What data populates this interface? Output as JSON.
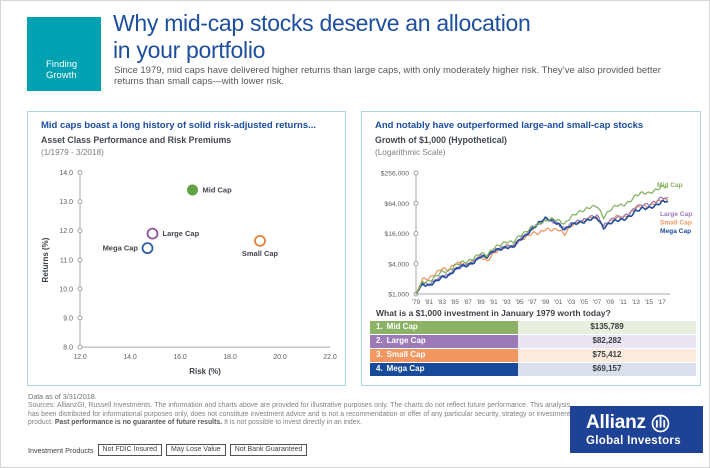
{
  "header": {
    "eyebrow_line1": "Finding",
    "eyebrow_line2": "Growth",
    "eyebrow_bg": "#00A1B0",
    "title_line1": "Why mid-cap stocks deserve an allocation",
    "title_line2": "in your portfolio",
    "title_color": "#1D4FA0",
    "subtitle": "Since 1979, mid caps have delivered higher returns than large caps, with only moderately higher risk. They’ve also provided better returns than small caps—with lower risk."
  },
  "left_panel": {
    "heading": "Mid caps boast a long history of solid risk-adjusted returns...",
    "subheading": "Asset Class Performance and Risk Premiums",
    "period": "(1/1979 - 3/2018)"
  },
  "right_panel": {
    "heading": "And notably have outperformed large-and small-cap stocks",
    "subheading": "Growth of $1,000 (Hypothetical)",
    "scale_note": "(Logarithmic Scale)"
  },
  "table": {
    "question": "What is a $1,000 investment in January 1979 worth today?",
    "rows": [
      {
        "rank": "1.",
        "label": "Mid Cap",
        "value": "$135,789",
        "row_color": "#8CB266",
        "value_bg": "#E9EFDE"
      },
      {
        "rank": "2.",
        "label": "Large Cap",
        "value": "$82,282",
        "row_color": "#9C7AB7",
        "value_bg": "#EAE5F2"
      },
      {
        "rank": "3.",
        "label": "Small Cap",
        "value": "$75,412",
        "row_color": "#F2975F",
        "value_bg": "#FCEADC"
      },
      {
        "rank": "4.",
        "label": "Mega Cap",
        "value": "$69,157",
        "row_color": "#174A9B",
        "value_bg": "#DBDFEC"
      }
    ]
  },
  "footer": {
    "data_as_of": "Data as of 3/31/2018.",
    "sources_pre": "Sources: AllianzGI, Russell Investments. The information and charts above are provided for illustrative purposes only. The charts do not reflect future performance. This analysis has been distributed for informational purposes only, does not constitute investment advice and is not a recommendation or offer of any particular security, strategy or investment product. ",
    "sources_bold": "Past performance is no guarantee of future results.",
    "sources_post": " It is not possible to invest directly in an index.",
    "disclaimer_label": "Investment Products",
    "disclaimer_boxes": [
      "Not FDIC Insured",
      "May Lose Value",
      "Not Bank Guaranteed"
    ],
    "logo_brand": "Allianz",
    "logo_sub": "Global Investors",
    "logo_bg": "#1E4296"
  },
  "chart_data": [
    {
      "type": "scatter",
      "title": "Asset Class Performance and Risk Premiums",
      "subtitle": "(1/1979 - 3/2018)",
      "xlabel": "Risk (%)",
      "ylabel": "Returns (%)",
      "xlim": [
        12.0,
        22.0
      ],
      "ylim": [
        8.0,
        14.0
      ],
      "xticks": [
        12.0,
        14.0,
        16.0,
        18.0,
        20.0,
        22.0
      ],
      "yticks": [
        8.0,
        9.0,
        10.0,
        11.0,
        12.0,
        13.0,
        14.0
      ],
      "grid": false,
      "points": [
        {
          "label": "Mid Cap",
          "x": 16.5,
          "y": 13.4,
          "color": "#63A244",
          "filled": true,
          "label_side": "right"
        },
        {
          "label": "Large Cap",
          "x": 14.9,
          "y": 11.9,
          "color": "#8E55A5",
          "filled": false,
          "label_side": "right"
        },
        {
          "label": "Mega Cap",
          "x": 14.7,
          "y": 11.4,
          "color": "#2F5FA6",
          "filled": false,
          "label_side": "left"
        },
        {
          "label": "Small Cap",
          "x": 19.2,
          "y": 11.65,
          "color": "#E0813C",
          "filled": false,
          "label_side": "below"
        }
      ]
    },
    {
      "type": "line",
      "title": "Growth of $1,000 (Hypothetical)",
      "subtitle": "(Logarithmic Scale)",
      "scale": "logarithmic",
      "legend_position": "right",
      "yticks": [
        {
          "label": "$1,000",
          "value": 1000
        },
        {
          "label": "$4,000",
          "value": 4000
        },
        {
          "label": "$16,000",
          "value": 16000
        },
        {
          "label": "$64,000",
          "value": 64000
        },
        {
          "label": "$256,000",
          "value": 256000
        }
      ],
      "xtick_labels": [
        "'79",
        "'81",
        "'83",
        "'85",
        "'87",
        "'89",
        "'91",
        "'93",
        "'95",
        "'97",
        "'99",
        "'01",
        "'03",
        "'05",
        "'07",
        "'09",
        "'11",
        "'13",
        "'15",
        "'17"
      ],
      "years": [
        1979,
        1980,
        1981,
        1982,
        1983,
        1984,
        1985,
        1986,
        1987,
        1988,
        1989,
        1990,
        1991,
        1992,
        1993,
        1994,
        1995,
        1996,
        1997,
        1998,
        1999,
        2000,
        2001,
        2002,
        2003,
        2004,
        2005,
        2006,
        2007,
        2008,
        2009,
        2010,
        2011,
        2012,
        2013,
        2014,
        2015,
        2016,
        2017,
        2018
      ],
      "series": [
        {
          "name": "Mid Cap",
          "color": "#85B161",
          "final_value": 135789,
          "values": [
            1000,
            1740,
            1770,
            2200,
            2790,
            2820,
            3720,
            4300,
            4360,
            5220,
            6590,
            5830,
            8250,
            9590,
            10960,
            10730,
            14430,
            17170,
            22150,
            24390,
            28830,
            31190,
            29440,
            24670,
            34560,
            41540,
            46820,
            53980,
            57000,
            33350,
            46860,
            58810,
            57930,
            67950,
            91600,
            103690,
            101200,
            115170,
            136470,
            135789
          ]
        },
        {
          "name": "Large Cap",
          "color": "#9C7BB8",
          "final_value": 82282,
          "values": [
            1000,
            1610,
            1530,
            1840,
            2250,
            2360,
            3120,
            3680,
            3790,
            4440,
            5790,
            5550,
            7380,
            8040,
            8860,
            8900,
            12260,
            15010,
            19950,
            25340,
            30640,
            28250,
            24750,
            19380,
            25170,
            28040,
            29810,
            34430,
            36430,
            22730,
            29190,
            33890,
            34400,
            40040,
            53290,
            60320,
            60860,
            68220,
            83020,
            82282
          ]
        },
        {
          "name": "Small Cap",
          "color": "#F0965F",
          "final_value": 75412,
          "values": [
            1000,
            1980,
            2020,
            2520,
            3250,
            3010,
            3950,
            4180,
            3810,
            4760,
            5540,
            4460,
            6510,
            7710,
            9170,
            9000,
            11570,
            13480,
            16500,
            16090,
            19520,
            18930,
            19400,
            15420,
            22710,
            26870,
            28100,
            33270,
            32740,
            21670,
            27560,
            34970,
            33500,
            38960,
            54080,
            56730,
            54230,
            65780,
            75380,
            75412
          ]
        },
        {
          "name": "Mega Cap",
          "color": "#1E4F9E",
          "final_value": 69157,
          "values": [
            1000,
            1560,
            1470,
            1780,
            2160,
            2280,
            3000,
            3580,
            3720,
            4300,
            5640,
            5500,
            7260,
            7830,
            8480,
            8560,
            11810,
            14690,
            19850,
            26020,
            32100,
            29000,
            24900,
            19000,
            24000,
            26100,
            27200,
            31200,
            33000,
            20600,
            25800,
            29300,
            30000,
            34300,
            44800,
            50600,
            51500,
            56400,
            68300,
            69157
          ]
        }
      ]
    }
  ]
}
